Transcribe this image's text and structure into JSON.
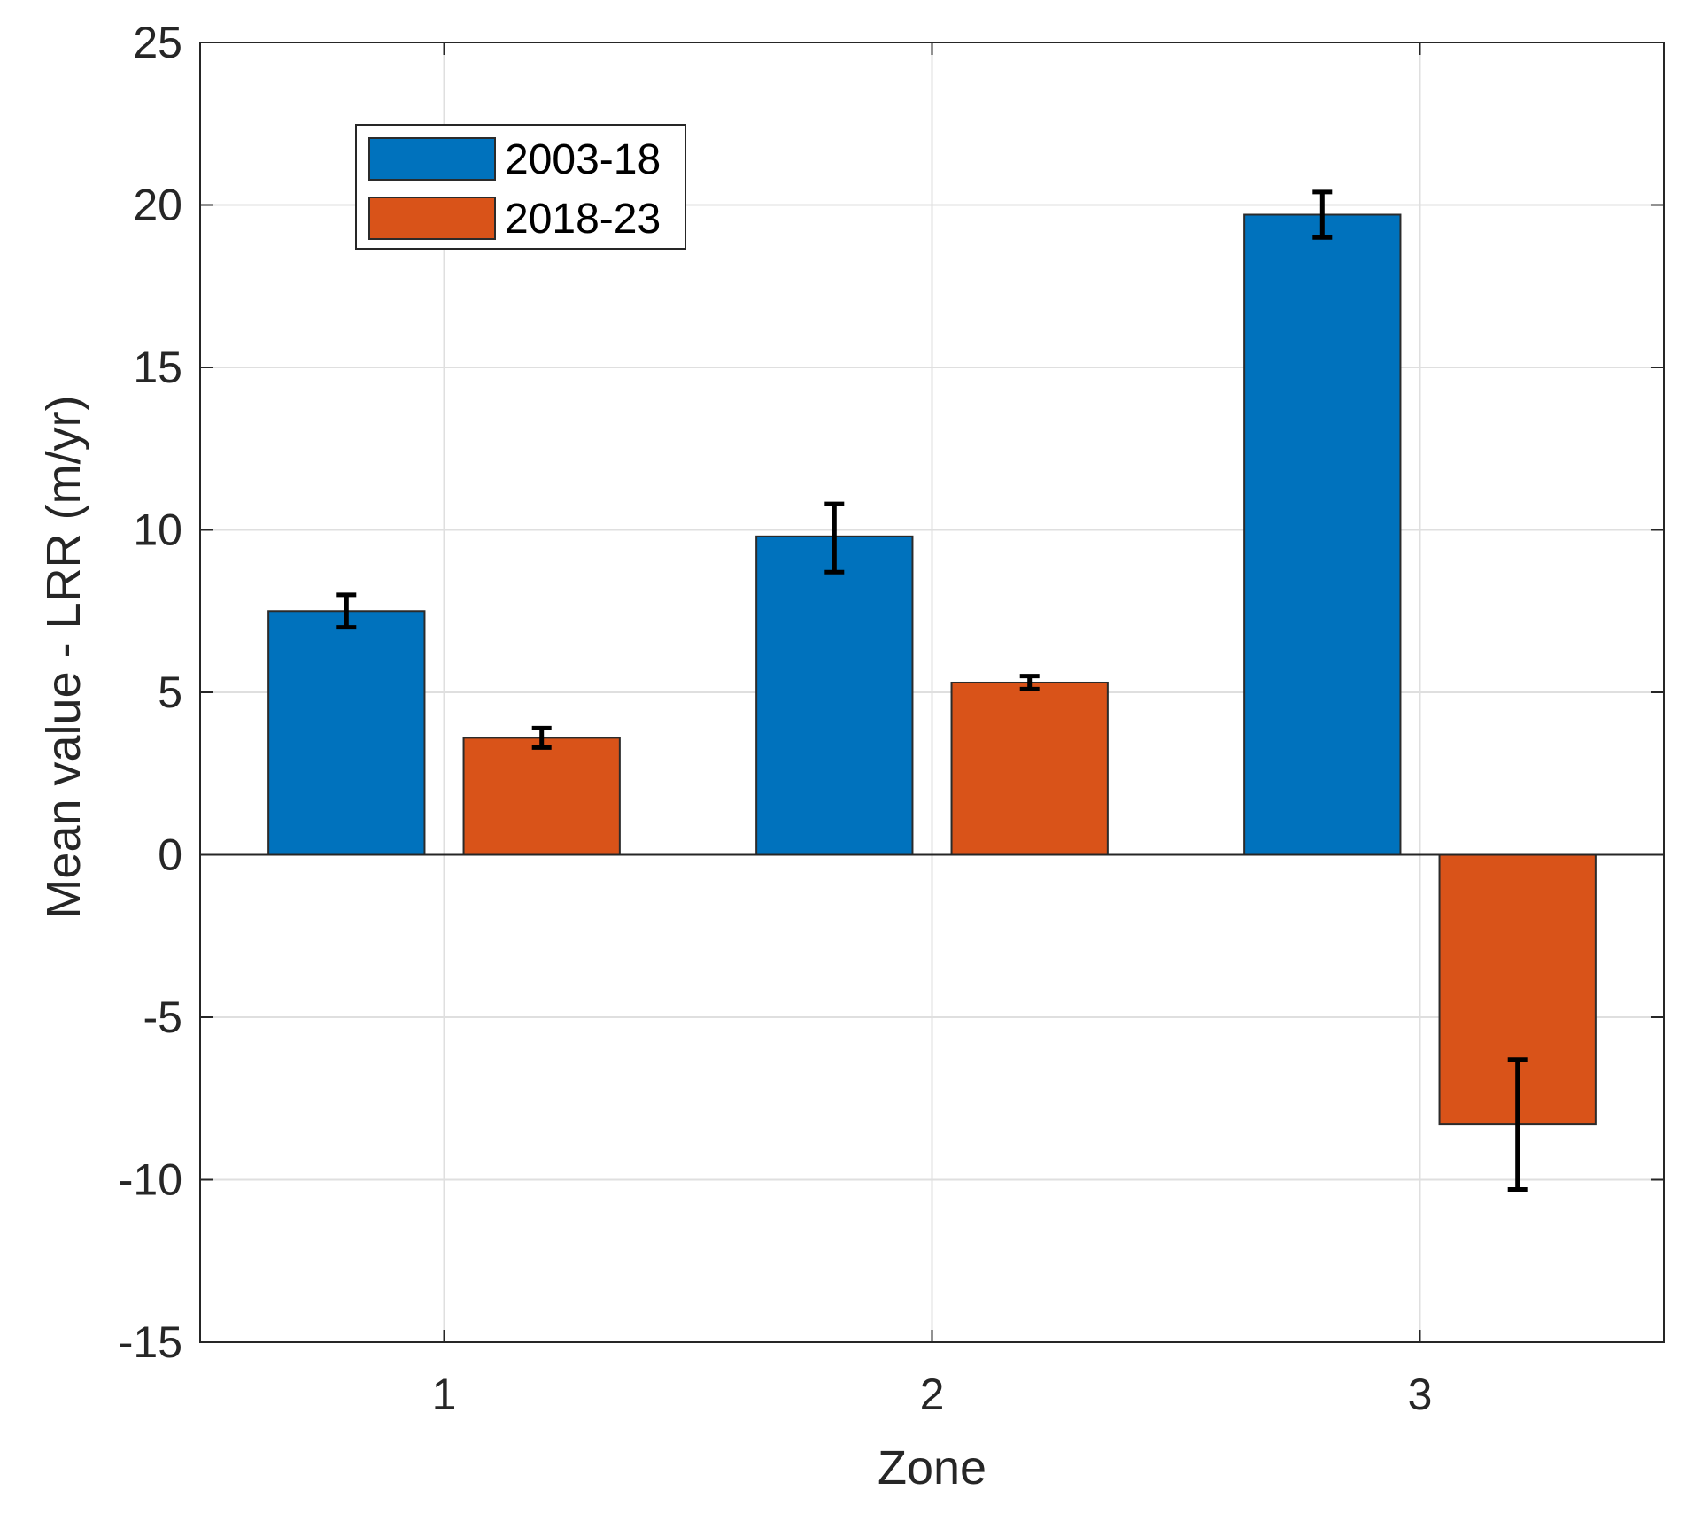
{
  "chart_data": {
    "type": "bar",
    "title": "",
    "xlabel": "Zone",
    "ylabel": "Mean value - LRR (m/yr)",
    "categories": [
      "1",
      "2",
      "3"
    ],
    "ylim": [
      -15,
      25
    ],
    "yticks": [
      -15,
      -10,
      -5,
      0,
      5,
      10,
      15,
      20,
      25
    ],
    "ytick_labels": [
      "-15",
      "-10",
      "-5",
      "0",
      "5",
      "10",
      "15",
      "20",
      "25"
    ],
    "grid": true,
    "legend_position": "top-left",
    "series": [
      {
        "name": "2003-18",
        "color": "#0072BD",
        "values": [
          7.5,
          9.8,
          19.7
        ],
        "error": [
          [
            7.0,
            8.0
          ],
          [
            8.7,
            10.8
          ],
          [
            19.0,
            20.4
          ]
        ]
      },
      {
        "name": "2018-23",
        "color": "#D95319",
        "values": [
          3.6,
          5.3,
          -8.3
        ],
        "error": [
          [
            3.3,
            3.9
          ],
          [
            5.1,
            5.5
          ],
          [
            -10.3,
            -6.3
          ]
        ]
      }
    ]
  }
}
